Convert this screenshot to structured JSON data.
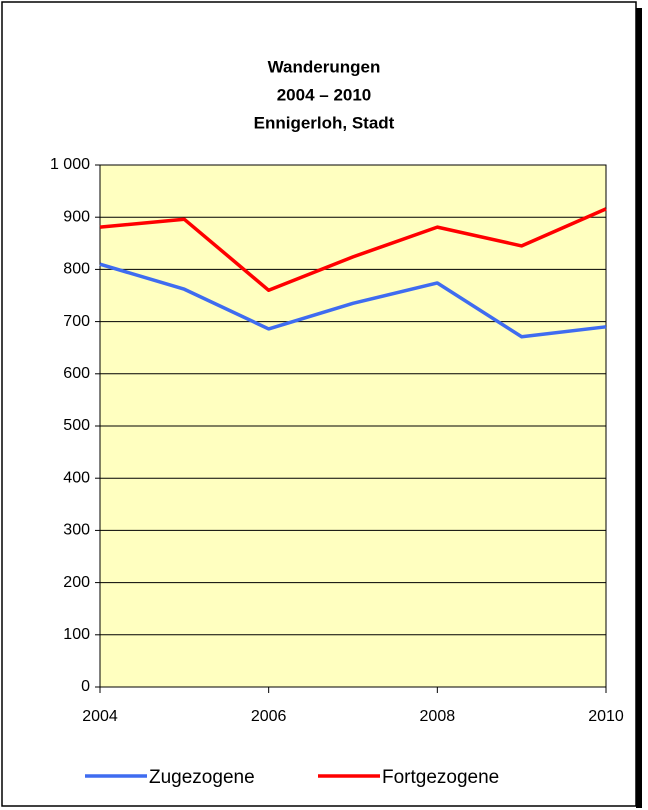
{
  "chart_data": {
    "type": "line",
    "title": [
      "Wanderungen",
      "2004 – 2010",
      "Ennigerloh, Stadt"
    ],
    "x": [
      2004,
      2005,
      2006,
      2007,
      2008,
      2009,
      2010
    ],
    "series": [
      {
        "name": "Zugezogene",
        "color": "#3f6cf0",
        "values": [
          810,
          762,
          686,
          735,
          774,
          671,
          690
        ]
      },
      {
        "name": "Fortgezogene",
        "color": "#ff0000",
        "values": [
          881,
          896,
          760,
          824,
          881,
          845,
          916
        ]
      }
    ],
    "xlim": [
      2004,
      2010
    ],
    "xticks": [
      2004,
      2006,
      2008,
      2010
    ],
    "ylim": [
      0,
      1000
    ],
    "yticks": [
      0,
      100,
      200,
      300,
      400,
      500,
      600,
      700,
      800,
      900,
      {
        "value": 1000,
        "label": "1 000"
      }
    ],
    "grid": true,
    "plot_background": "#ffffc0",
    "legend": "bottom"
  }
}
